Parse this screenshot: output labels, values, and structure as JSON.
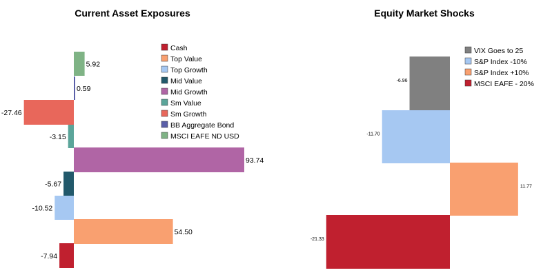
{
  "chart_data": [
    {
      "type": "bar",
      "orientation": "horizontal",
      "title": "Current Asset Exposures",
      "categories": [
        "MSCI EAFE ND USD",
        "BB Aggregate Bond",
        "Sm Growth",
        "Sm Value",
        "Mid Growth",
        "Mid Value",
        "Top Growth",
        "Top Value",
        "Cash"
      ],
      "values": [
        5.92,
        0.59,
        -27.46,
        -3.15,
        93.74,
        -5.67,
        -10.52,
        54.5,
        -7.94
      ],
      "labels": [
        "5.92",
        "0.59",
        "-27.46",
        "-3.15",
        "93.74",
        "-5.67",
        "-10.52",
        "54.50",
        "-7.94"
      ],
      "colors": [
        "#7fb385",
        "#5a5fa8",
        "#e8675b",
        "#5ba59a",
        "#b065a5",
        "#22596b",
        "#a6c8f2",
        "#f9a070",
        "#c0202f"
      ],
      "legend": {
        "placement": "top-right",
        "entries": [
          {
            "label": "Cash",
            "color": "#c0202f"
          },
          {
            "label": "Top Value",
            "color": "#f9a070"
          },
          {
            "label": "Top Growth",
            "color": "#a6c8f2"
          },
          {
            "label": "Mid Value",
            "color": "#22596b"
          },
          {
            "label": "Mid Growth",
            "color": "#b065a5"
          },
          {
            "label": "Sm Value",
            "color": "#5ba59a"
          },
          {
            "label": "Sm Growth",
            "color": "#e8675b"
          },
          {
            "label": "BB Aggregate Bond",
            "color": "#5a5fa8"
          },
          {
            "label": "MSCI EAFE ND USD",
            "color": "#7fb385"
          }
        ]
      },
      "xlim": [
        -27.46,
        93.74
      ],
      "grid": false
    },
    {
      "type": "bar",
      "orientation": "horizontal",
      "title": "Equity Market Shocks",
      "categories": [
        "VIX Goes to 25",
        "S&P Index -10%",
        "S&P Index +10%",
        "MSCI EAFE - 20%"
      ],
      "values": [
        -6.96,
        -11.7,
        11.77,
        -21.33
      ],
      "labels": [
        "-6.96",
        "-11.70",
        "11.77",
        "-21.33"
      ],
      "colors": [
        "#808080",
        "#a6c8f2",
        "#f9a070",
        "#c0202f"
      ],
      "legend": {
        "placement": "top-right",
        "entries": [
          {
            "label": "VIX Goes to 25",
            "color": "#808080"
          },
          {
            "label": "S&P Index -10%",
            "color": "#a6c8f2"
          },
          {
            "label": "S&P Index +10%",
            "color": "#f9a070"
          },
          {
            "label": "MSCI EAFE - 20%",
            "color": "#c0202f"
          }
        ]
      },
      "xlim": [
        -21.33,
        11.77
      ],
      "grid": false
    }
  ]
}
